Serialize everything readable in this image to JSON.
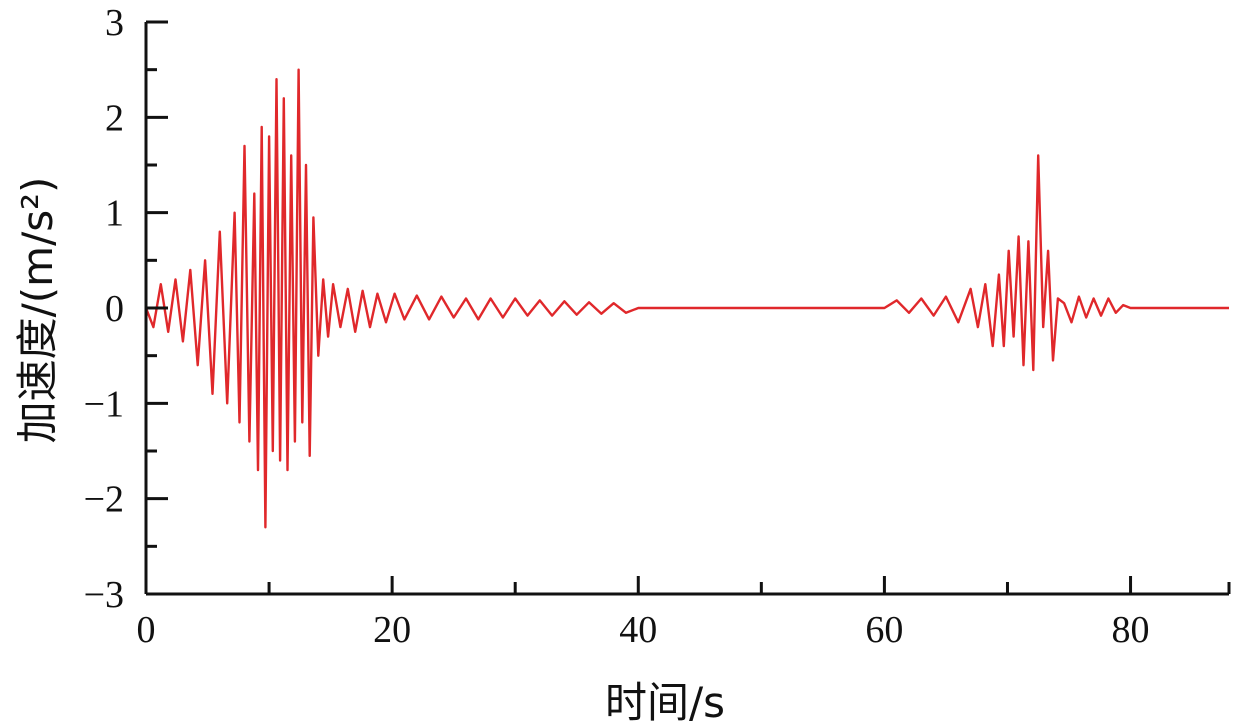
{
  "chart_data": {
    "type": "line",
    "title": "",
    "xlabel": "时间/s",
    "ylabel": "加速度/(m/s²)",
    "xlim": [
      0,
      88
    ],
    "ylim": [
      -3,
      3
    ],
    "grid": false,
    "x_ticks": [
      0,
      20,
      40,
      60,
      80
    ],
    "x_tick_labels": [
      "0",
      "20",
      "40",
      "60",
      "80"
    ],
    "x_minor_ticks": [
      10,
      30,
      50,
      70,
      88
    ],
    "y_ticks": [
      -3,
      -2,
      -1,
      0,
      1,
      2,
      3
    ],
    "y_tick_labels": [
      "−3",
      "−2",
      "−1",
      "0",
      "1",
      "2",
      "3"
    ],
    "series": [
      {
        "color": "#e0282b",
        "x": [
          0,
          0.6,
          1.2,
          1.8,
          2.4,
          3.0,
          3.6,
          4.2,
          4.8,
          5.4,
          6.0,
          6.6,
          7.2,
          7.6,
          8.0,
          8.4,
          8.8,
          9.1,
          9.4,
          9.7,
          10.0,
          10.3,
          10.6,
          10.9,
          11.2,
          11.5,
          11.8,
          12.1,
          12.4,
          12.7,
          13.0,
          13.3,
          13.6,
          14.0,
          14.4,
          14.8,
          15.2,
          15.8,
          16.4,
          17.0,
          17.6,
          18.2,
          18.8,
          19.5,
          20.2,
          21.0,
          22.0,
          23.0,
          24.0,
          25.0,
          26.0,
          27.0,
          28.0,
          29.0,
          30.0,
          31.0,
          32.0,
          33.0,
          34.0,
          35.0,
          36.0,
          37.0,
          38.0,
          39.0,
          40.0,
          45.0,
          50.0,
          55.0,
          60.0,
          61.0,
          62.0,
          63.0,
          64.0,
          65.0,
          66.0,
          67.0,
          67.6,
          68.2,
          68.8,
          69.3,
          69.7,
          70.1,
          70.5,
          70.9,
          71.3,
          71.7,
          72.1,
          72.5,
          72.9,
          73.3,
          73.7,
          74.1,
          74.6,
          75.2,
          75.8,
          76.4,
          77.0,
          77.6,
          78.2,
          78.8,
          79.4,
          80.0,
          84.0,
          88.0
        ],
        "values": [
          0.0,
          -0.2,
          0.25,
          -0.25,
          0.3,
          -0.35,
          0.4,
          -0.6,
          0.5,
          -0.9,
          0.8,
          -1.0,
          1.0,
          -1.2,
          1.7,
          -1.4,
          1.2,
          -1.7,
          1.9,
          -2.3,
          1.8,
          -1.5,
          2.4,
          -1.6,
          2.2,
          -1.7,
          1.6,
          -1.4,
          2.5,
          -1.2,
          1.5,
          -1.55,
          0.95,
          -0.5,
          0.3,
          -0.3,
          0.25,
          -0.2,
          0.2,
          -0.25,
          0.18,
          -0.2,
          0.15,
          -0.15,
          0.15,
          -0.12,
          0.13,
          -0.12,
          0.12,
          -0.1,
          0.1,
          -0.12,
          0.1,
          -0.1,
          0.1,
          -0.08,
          0.08,
          -0.08,
          0.07,
          -0.07,
          0.06,
          -0.06,
          0.05,
          -0.05,
          0.0,
          0.0,
          0.0,
          0.0,
          0.0,
          0.08,
          -0.05,
          0.1,
          -0.08,
          0.12,
          -0.15,
          0.2,
          -0.2,
          0.25,
          -0.4,
          0.35,
          -0.4,
          0.6,
          -0.3,
          0.75,
          -0.6,
          0.7,
          -0.65,
          1.6,
          -0.2,
          0.6,
          -0.55,
          0.1,
          0.05,
          -0.15,
          0.12,
          -0.1,
          0.1,
          -0.08,
          0.1,
          -0.05,
          0.03,
          0.0,
          0.0,
          0.0
        ]
      }
    ]
  }
}
